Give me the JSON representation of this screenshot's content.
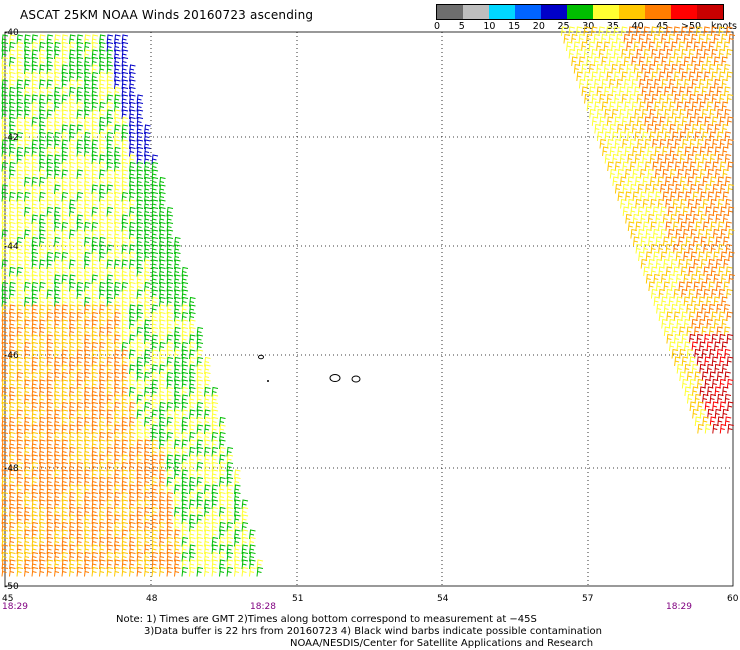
{
  "title": "ASCAT 25KM NOAA Winds 20160723 ascending",
  "legend": {
    "unit": "knots",
    "colors": [
      "#6e6e6e",
      "#bebebe",
      "#00d7ff",
      "#0064ff",
      "#0000c8",
      "#00be00",
      "#ffff32",
      "#ffc800",
      "#ff7d00",
      "#ff0000",
      "#c80000",
      "#8c2814",
      "#ff00ff",
      "#b400b4",
      "#780078"
    ],
    "labels": [
      "0",
      "5",
      "10",
      "15",
      "20",
      "25",
      "30",
      "35",
      "40",
      "45",
      ">50"
    ]
  },
  "axes": {
    "y_labels": [
      "-40",
      "-42",
      "-44",
      "-46",
      "-48",
      "-50"
    ],
    "x_labels": [
      "45",
      "48",
      "51",
      "54",
      "57",
      "60"
    ]
  },
  "times": {
    "left": "18:29",
    "middle": "18:28",
    "right": "18:29"
  },
  "footer": {
    "line1": "Note: 1) Times are GMT 2)Times along bottom correspond to measurement at −45S",
    "line2": "3)Data buffer is 22 hrs from 20160723 4) Black wind barbs indicate possible contamination",
    "line3": "NOAA/NESDIS/Center for Satellite Applications and Research"
  },
  "map_data": {
    "lon_range": [
      45,
      60
    ],
    "lat_range": [
      -50,
      -40
    ],
    "swaths": [
      {
        "name": "west",
        "colors": [
          "#00be00",
          "#ffff32",
          "#ffc800",
          "#ff7d00",
          "#0000c8"
        ]
      },
      {
        "name": "east",
        "colors": [
          "#ffc800",
          "#ff7d00",
          "#ff0000",
          "#c80000",
          "#ffff32"
        ]
      }
    ]
  }
}
